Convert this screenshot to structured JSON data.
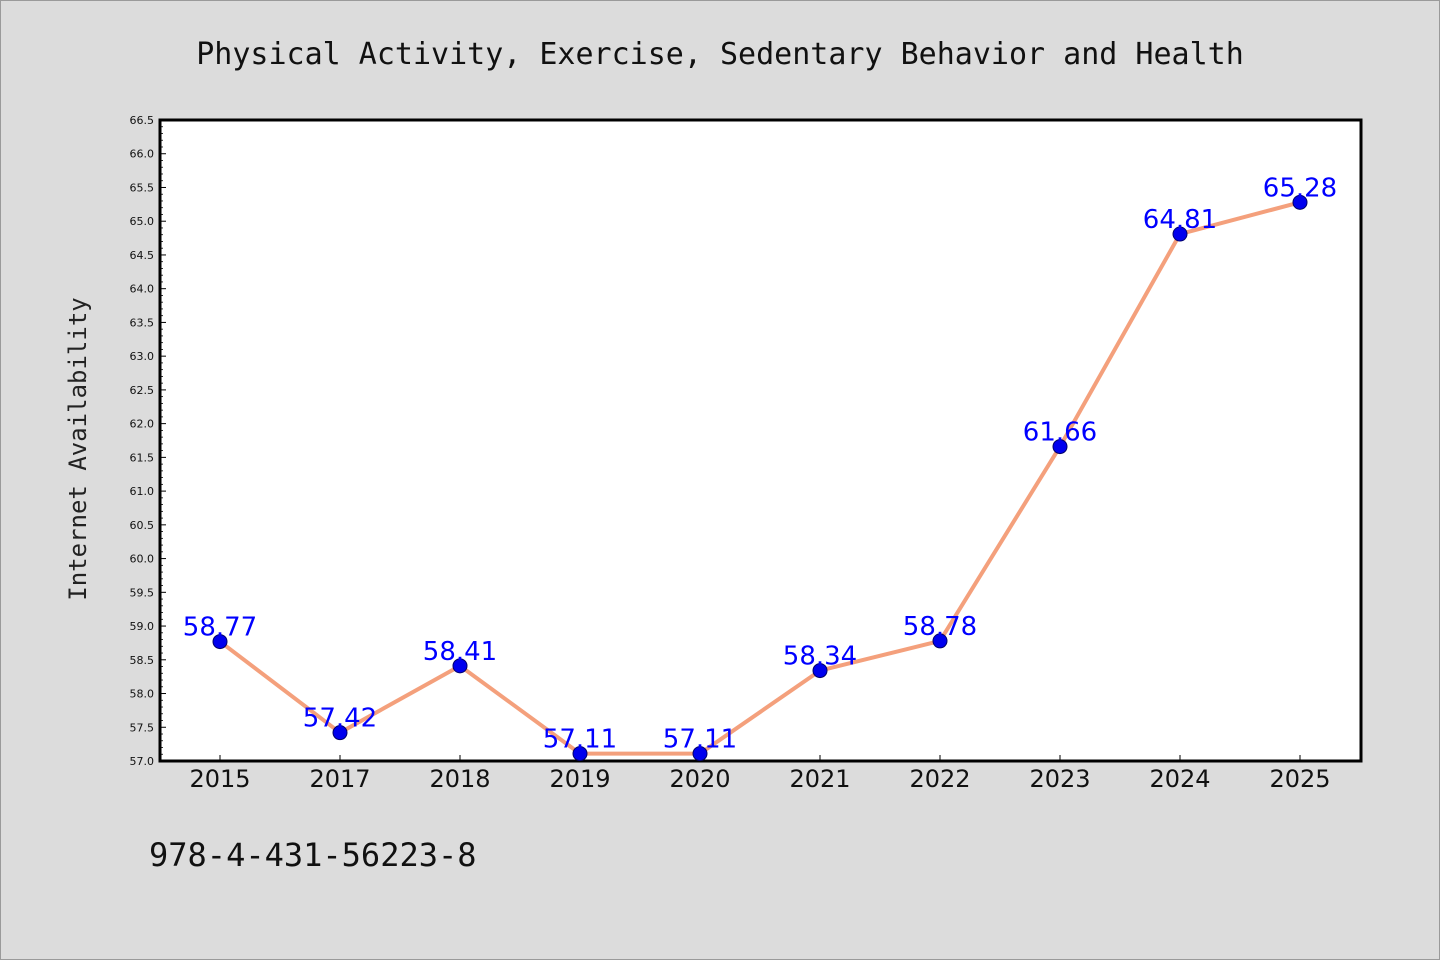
{
  "chart_data": {
    "type": "line",
    "title": "Physical Activity, Exercise, Sedentary Behavior and Health",
    "xlabel": "",
    "ylabel": "Internet Availability",
    "categories": [
      "2015",
      "2017",
      "2018",
      "2019",
      "2020",
      "2021",
      "2022",
      "2023",
      "2024",
      "2025"
    ],
    "series": [
      {
        "values": [
          58.77,
          57.42,
          58.41,
          57.11,
          57.11,
          58.34,
          58.78,
          61.66,
          64.81,
          65.28
        ],
        "labels": [
          "58.77",
          "57.42",
          "58.41",
          "57.11",
          "57.11",
          "58.34",
          "58.78",
          "61.66",
          "64.81",
          "65.28"
        ],
        "line_color": "#f4a07c",
        "marker_color": "#0000ee"
      }
    ],
    "ylim": [
      57.0,
      66.5
    ],
    "yticks": [
      "57.0",
      "57.5",
      "58.0",
      "58.5",
      "59.0",
      "59.5",
      "60.0",
      "60.5",
      "61.0",
      "61.5",
      "62.0",
      "62.5",
      "63.0",
      "63.5",
      "64.0",
      "64.5",
      "65.0",
      "65.5",
      "66.0",
      "66.5"
    ],
    "grid": false,
    "legend": "none",
    "label_color": "#0000ff"
  },
  "caption": "978-4-431-56223-8",
  "colors": {
    "background": "#dcdcdc",
    "plot_area": "#ffffff",
    "axes": "#000000"
  }
}
